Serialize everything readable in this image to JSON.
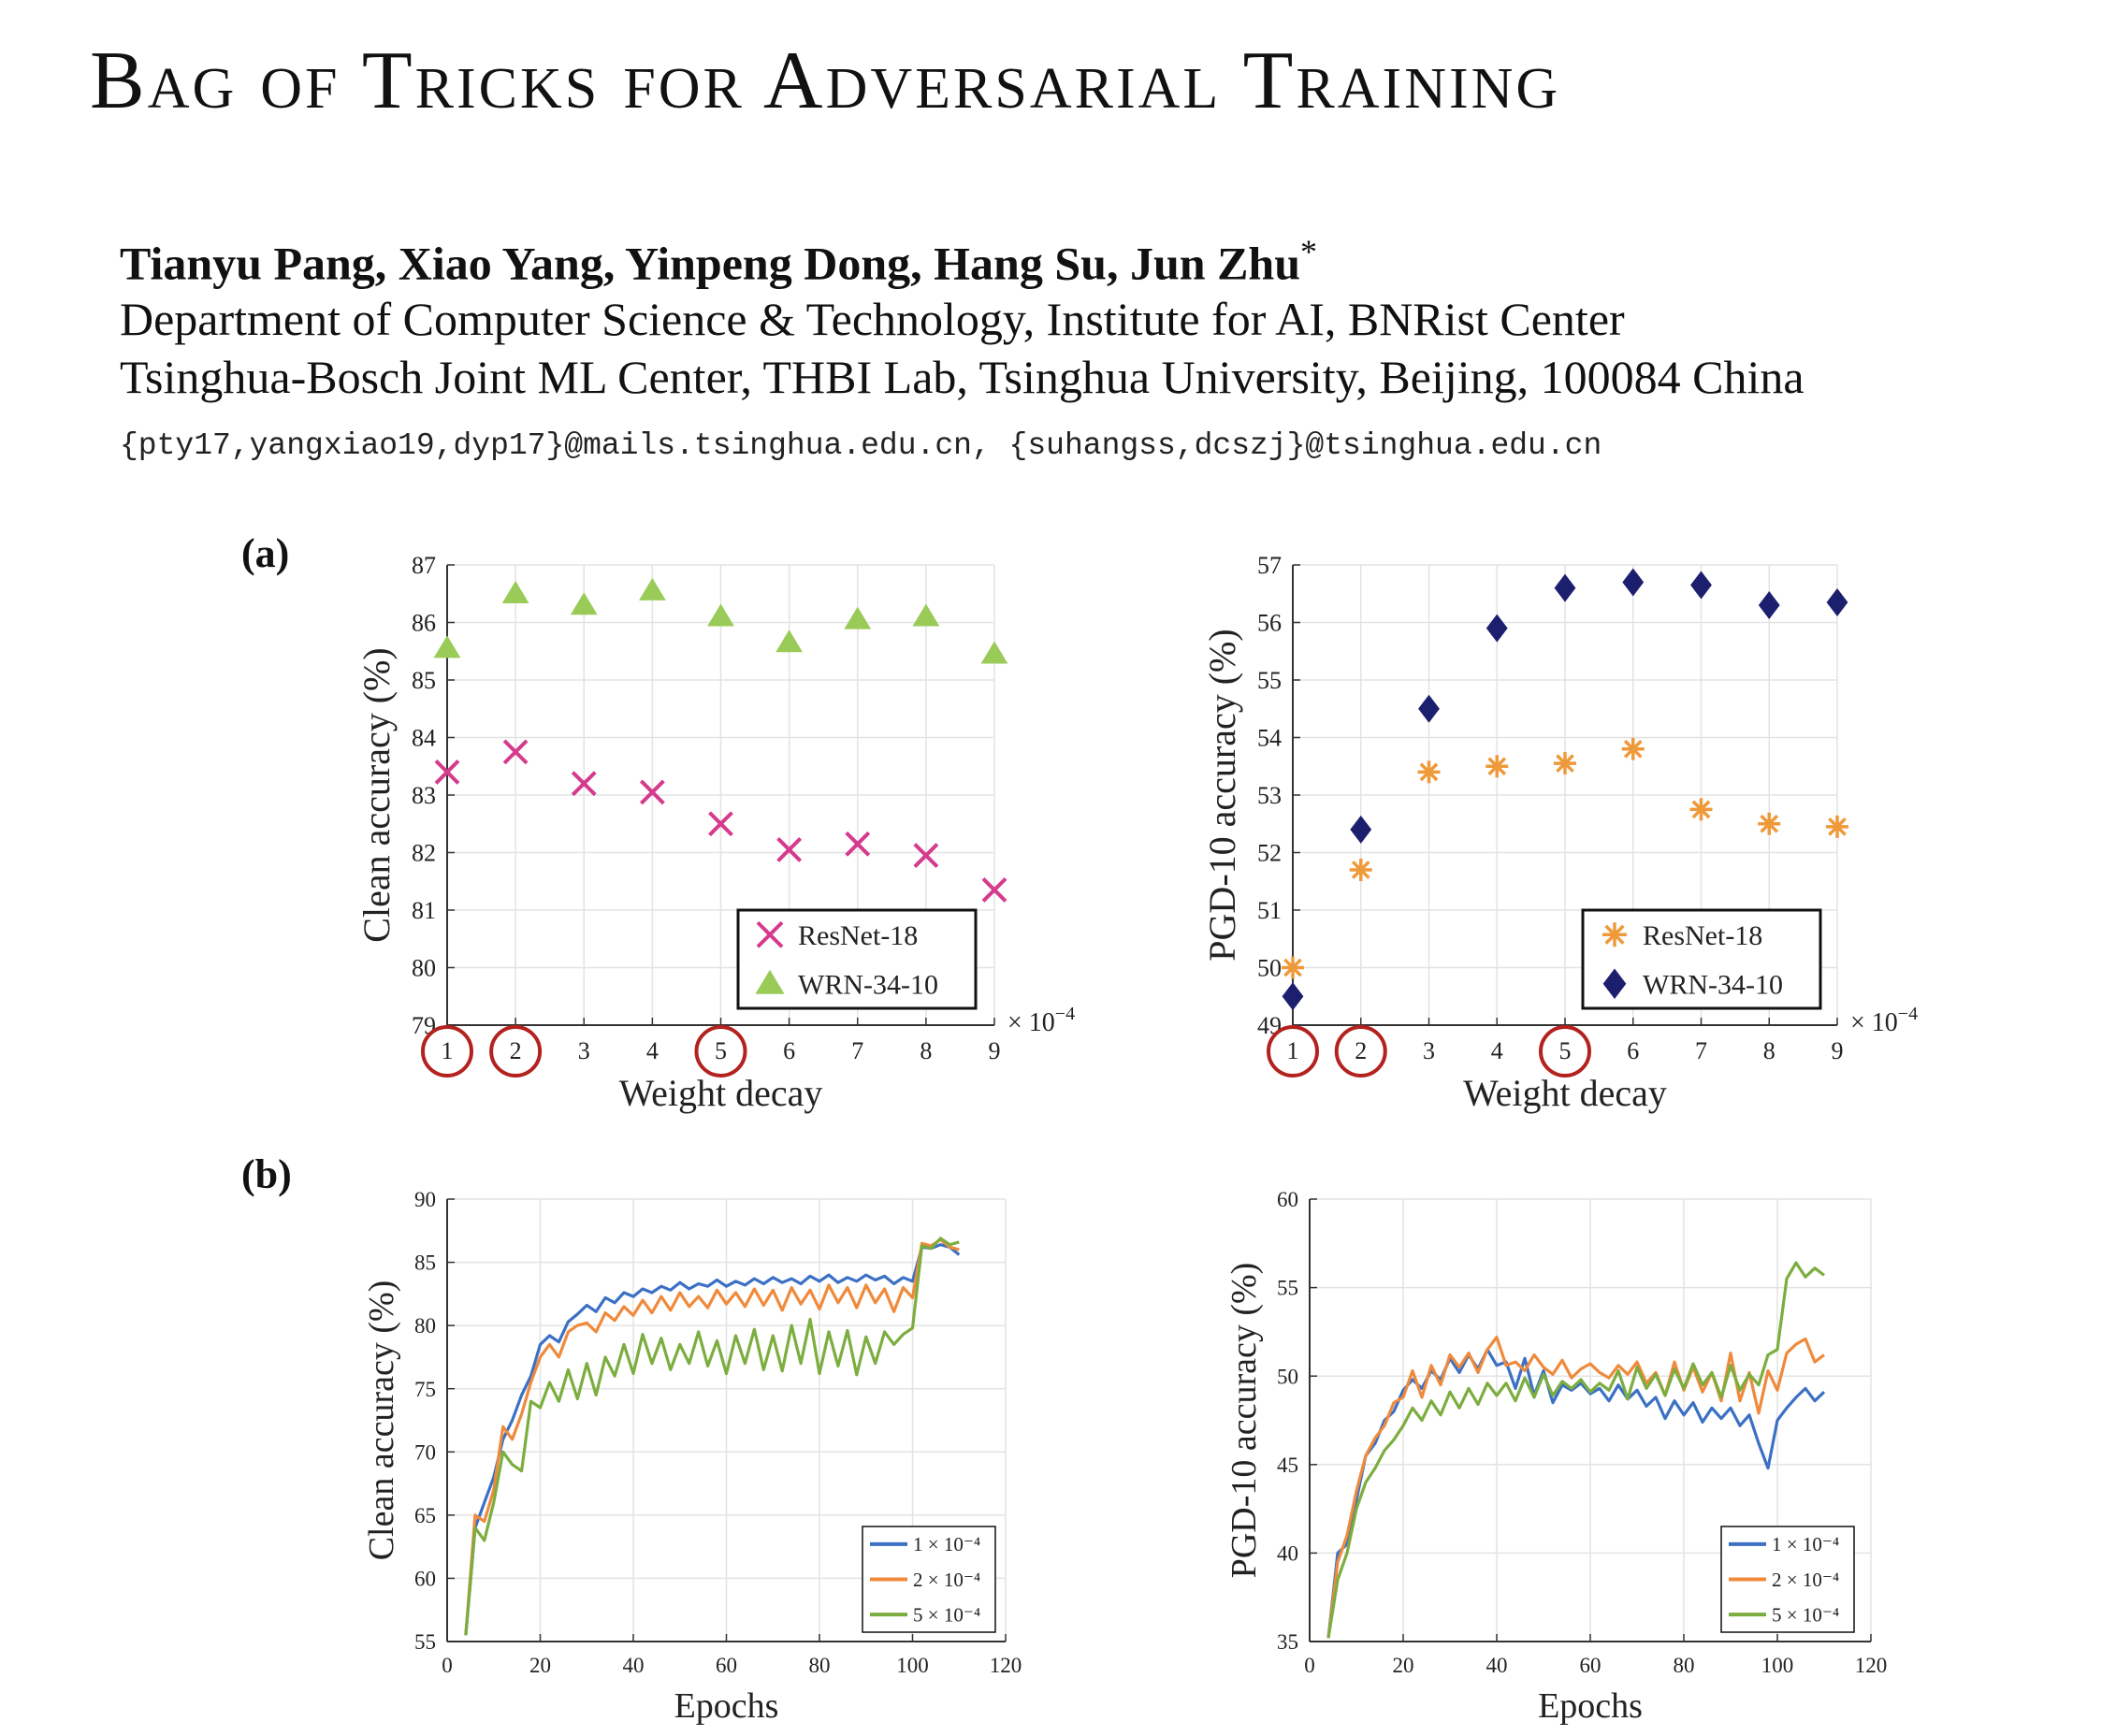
{
  "title": "Bag of Tricks for Adversarial Training",
  "authors": "Tianyu Pang, Xiao Yang, Yinpeng Dong, Hang Su, Jun Zhu",
  "author_mark": "*",
  "affiliation_1": "Department of Computer Science & Technology, Institute for AI, BNRist Center",
  "affiliation_2": "Tsinghua-Bosch Joint ML Center, THBI Lab, Tsinghua University, Beijing, 100084 China",
  "emails": "{pty17,yangxiao19,dyp17}@mails.tsinghua.edu.cn, {suhangss,dcszj}@tsinghua.edu.cn",
  "panel_labels": {
    "a": "(a)",
    "b": "(b)"
  },
  "chart_data": [
    {
      "id": "a-left",
      "type": "scatter",
      "xlabel": "Weight decay",
      "ylabel": "Clean accuracy (%)",
      "x_multiplier": "× 10",
      "x_multiplier_exp": "−4",
      "xlim": [
        1,
        9
      ],
      "ylim": [
        79,
        87
      ],
      "xticks": [
        1,
        2,
        3,
        4,
        5,
        6,
        7,
        8,
        9
      ],
      "yticks": [
        79,
        80,
        81,
        82,
        83,
        84,
        85,
        86,
        87
      ],
      "circled_xticks": [
        1,
        2,
        5
      ],
      "grid": true,
      "legend_position": "bottom-right",
      "series": [
        {
          "name": "ResNet-18",
          "marker": "x",
          "color": "#d63a8e",
          "x": [
            1,
            2,
            3,
            4,
            5,
            6,
            7,
            8,
            9
          ],
          "y": [
            83.4,
            83.75,
            83.2,
            83.05,
            82.5,
            82.05,
            82.15,
            81.95,
            81.35
          ]
        },
        {
          "name": "WRN-34-10",
          "marker": "triangle",
          "color": "#9acb58",
          "x": [
            1,
            2,
            3,
            4,
            5,
            6,
            7,
            8,
            9
          ],
          "y": [
            85.55,
            86.5,
            86.3,
            86.55,
            86.1,
            85.65,
            86.05,
            86.1,
            85.45
          ]
        }
      ]
    },
    {
      "id": "a-right",
      "type": "scatter",
      "xlabel": "Weight decay",
      "ylabel": "PGD-10 accuracy (%)",
      "x_multiplier": "× 10",
      "x_multiplier_exp": "−4",
      "xlim": [
        1,
        9
      ],
      "ylim": [
        49,
        57
      ],
      "xticks": [
        1,
        2,
        3,
        4,
        5,
        6,
        7,
        8,
        9
      ],
      "yticks": [
        49,
        50,
        51,
        52,
        53,
        54,
        55,
        56,
        57
      ],
      "circled_xticks": [
        1,
        2,
        5
      ],
      "grid": true,
      "legend_position": "bottom-right",
      "series": [
        {
          "name": "ResNet-18",
          "marker": "asterisk",
          "color": "#ef9a3a",
          "x": [
            1,
            2,
            3,
            4,
            5,
            6,
            7,
            8,
            9
          ],
          "y": [
            50.0,
            51.7,
            53.4,
            53.5,
            53.55,
            53.8,
            52.75,
            52.5,
            52.45
          ]
        },
        {
          "name": "WRN-34-10",
          "marker": "diamond",
          "color": "#1c1f6e",
          "x": [
            1,
            2,
            3,
            4,
            5,
            6,
            7,
            8,
            9
          ],
          "y": [
            49.5,
            52.4,
            54.5,
            55.9,
            56.6,
            56.7,
            56.65,
            56.3,
            56.35
          ]
        }
      ]
    },
    {
      "id": "b-left",
      "type": "line",
      "xlabel": "Epochs",
      "ylabel": "Clean accuracy (%)",
      "xlim": [
        0,
        120
      ],
      "ylim": [
        55,
        90
      ],
      "xticks": [
        0,
        20,
        40,
        60,
        80,
        100,
        120
      ],
      "yticks": [
        55,
        60,
        65,
        70,
        75,
        80,
        85,
        90
      ],
      "grid": true,
      "legend_position": "bottom-right",
      "series": [
        {
          "name": "1 × 10⁻⁴",
          "color": "#3b70c4",
          "x": [
            4,
            6,
            8,
            10,
            12,
            14,
            16,
            18,
            20,
            22,
            24,
            26,
            28,
            30,
            32,
            34,
            36,
            38,
            40,
            42,
            44,
            46,
            48,
            50,
            52,
            54,
            56,
            58,
            60,
            62,
            64,
            66,
            68,
            70,
            72,
            74,
            76,
            78,
            80,
            82,
            84,
            86,
            88,
            90,
            92,
            94,
            96,
            98,
            100,
            102,
            104,
            106,
            108,
            110
          ],
          "y": [
            55.5,
            64,
            66,
            68,
            71,
            72.5,
            74.5,
            76,
            78.5,
            79.2,
            78.7,
            80.3,
            80.9,
            81.6,
            81.1,
            82.2,
            81.8,
            82.6,
            82.3,
            82.9,
            82.6,
            83.1,
            82.8,
            83.4,
            82.9,
            83.3,
            83.1,
            83.6,
            83.1,
            83.5,
            83.2,
            83.7,
            83.3,
            83.8,
            83.4,
            83.7,
            83.3,
            83.9,
            83.5,
            84.0,
            83.4,
            83.8,
            83.5,
            84.0,
            83.6,
            83.9,
            83.3,
            83.8,
            83.5,
            86.2,
            86.1,
            86.4,
            86.2,
            85.6
          ]
        },
        {
          "name": "2 × 10⁻⁴",
          "color": "#ef8a3c",
          "x": [
            4,
            6,
            8,
            10,
            12,
            14,
            16,
            18,
            20,
            22,
            24,
            26,
            28,
            30,
            32,
            34,
            36,
            38,
            40,
            42,
            44,
            46,
            48,
            50,
            52,
            54,
            56,
            58,
            60,
            62,
            64,
            66,
            68,
            70,
            72,
            74,
            76,
            78,
            80,
            82,
            84,
            86,
            88,
            90,
            92,
            94,
            96,
            98,
            100,
            102,
            104,
            106,
            108,
            110
          ],
          "y": [
            55.5,
            65,
            64.5,
            67,
            72,
            71,
            73,
            75.5,
            77.5,
            78.5,
            77.5,
            79.5,
            80,
            80.2,
            79.5,
            81,
            80.4,
            81.5,
            80.8,
            82,
            81,
            82.3,
            81.2,
            82.6,
            81.5,
            82.3,
            81.4,
            82.8,
            81.7,
            82.6,
            81.5,
            82.9,
            81.6,
            82.8,
            81.2,
            83,
            81.7,
            82.8,
            81.3,
            83.2,
            81.8,
            83,
            81.4,
            83.2,
            81.8,
            82.9,
            81.1,
            83,
            82.2,
            86.5,
            86.3,
            86.8,
            86.2,
            86.0
          ]
        },
        {
          "name": "5 × 10⁻⁴",
          "color": "#7cad3f",
          "x": [
            4,
            6,
            8,
            10,
            12,
            14,
            16,
            18,
            20,
            22,
            24,
            26,
            28,
            30,
            32,
            34,
            36,
            38,
            40,
            42,
            44,
            46,
            48,
            50,
            52,
            54,
            56,
            58,
            60,
            62,
            64,
            66,
            68,
            70,
            72,
            74,
            76,
            78,
            80,
            82,
            84,
            86,
            88,
            90,
            92,
            94,
            96,
            98,
            100,
            102,
            104,
            106,
            108,
            110
          ],
          "y": [
            55.5,
            64,
            63,
            66,
            70,
            69,
            68.5,
            74,
            73.5,
            75.5,
            74,
            76.5,
            74.2,
            77,
            74.5,
            77.5,
            76,
            78.5,
            76.2,
            79.3,
            77,
            79,
            76.5,
            78.5,
            77,
            79.5,
            76.8,
            78.8,
            76.2,
            79.2,
            77,
            79.7,
            76.5,
            79.2,
            76.4,
            80,
            77,
            80.5,
            76.2,
            79.5,
            76.8,
            79.6,
            76.1,
            79.1,
            77,
            79.5,
            78.5,
            79.3,
            79.8,
            86.3,
            86.1,
            86.9,
            86.4,
            86.6
          ]
        }
      ]
    },
    {
      "id": "b-right",
      "type": "line",
      "xlabel": "Epochs",
      "ylabel": "PGD-10 accuracy (%)",
      "xlim": [
        0,
        120
      ],
      "ylim": [
        35,
        60
      ],
      "xticks": [
        0,
        20,
        40,
        60,
        80,
        100,
        120
      ],
      "yticks": [
        35,
        40,
        45,
        50,
        55,
        60
      ],
      "grid": true,
      "legend_position": "bottom-right",
      "series": [
        {
          "name": "1 × 10⁻⁴",
          "color": "#3b70c4",
          "x": [
            4,
            6,
            8,
            10,
            12,
            14,
            16,
            18,
            20,
            22,
            24,
            26,
            28,
            30,
            32,
            34,
            36,
            38,
            40,
            42,
            44,
            46,
            48,
            50,
            52,
            54,
            56,
            58,
            60,
            62,
            64,
            66,
            68,
            70,
            72,
            74,
            76,
            78,
            80,
            82,
            84,
            86,
            88,
            90,
            92,
            94,
            96,
            98,
            100,
            102,
            104,
            106,
            108,
            110
          ],
          "y": [
            35.2,
            40,
            40.5,
            43,
            45.5,
            46.2,
            47.5,
            48,
            49.2,
            49.8,
            49.3,
            50.3,
            49.8,
            51,
            50.2,
            51.2,
            50.4,
            51.5,
            50.6,
            50.8,
            49.3,
            51,
            48.9,
            50.3,
            48.5,
            49.5,
            49.2,
            49.6,
            49,
            49.3,
            48.6,
            49.5,
            48.7,
            49.2,
            48.3,
            48.8,
            47.6,
            48.6,
            47.8,
            48.5,
            47.4,
            48.2,
            47.6,
            48.2,
            47.2,
            47.8,
            46.2,
            44.8,
            47.5,
            48.2,
            48.8,
            49.3,
            48.6,
            49.1
          ]
        },
        {
          "name": "2 × 10⁻⁴",
          "color": "#ef8a3c",
          "x": [
            4,
            6,
            8,
            10,
            12,
            14,
            16,
            18,
            20,
            22,
            24,
            26,
            28,
            30,
            32,
            34,
            36,
            38,
            40,
            42,
            44,
            46,
            48,
            50,
            52,
            54,
            56,
            58,
            60,
            62,
            64,
            66,
            68,
            70,
            72,
            74,
            76,
            78,
            80,
            82,
            84,
            86,
            88,
            90,
            92,
            94,
            96,
            98,
            100,
            102,
            104,
            106,
            108,
            110
          ],
          "y": [
            35.2,
            39.5,
            41,
            43.5,
            45.5,
            46.5,
            47.2,
            48.5,
            48.8,
            50.3,
            48.8,
            50.6,
            49.5,
            51.2,
            50.5,
            51.3,
            50.2,
            51.5,
            52.2,
            50.6,
            50.8,
            50.3,
            51.2,
            50.5,
            50.1,
            50.9,
            49.9,
            50.4,
            50.7,
            50.2,
            49.9,
            50.6,
            50.1,
            50.8,
            49.6,
            50.2,
            48.9,
            50.8,
            49.2,
            50.5,
            49.1,
            50.2,
            48.6,
            51.3,
            48.6,
            50.2,
            47.9,
            50.3,
            49.2,
            51.3,
            51.8,
            52.1,
            50.8,
            51.2
          ]
        },
        {
          "name": "5 × 10⁻⁴",
          "color": "#7cad3f",
          "x": [
            4,
            6,
            8,
            10,
            12,
            14,
            16,
            18,
            20,
            22,
            24,
            26,
            28,
            30,
            32,
            34,
            36,
            38,
            40,
            42,
            44,
            46,
            48,
            50,
            52,
            54,
            56,
            58,
            60,
            62,
            64,
            66,
            68,
            70,
            72,
            74,
            76,
            78,
            80,
            82,
            84,
            86,
            88,
            90,
            92,
            94,
            96,
            98,
            100,
            102,
            104,
            106,
            108,
            110
          ],
          "y": [
            35.2,
            38.5,
            40,
            42.5,
            44,
            44.8,
            45.8,
            46.4,
            47.2,
            48.2,
            47.5,
            48.6,
            47.8,
            49.1,
            48.2,
            49.3,
            48.4,
            49.6,
            48.9,
            49.6,
            48.6,
            49.9,
            48.8,
            50.1,
            48.9,
            49.7,
            49.3,
            49.8,
            49.1,
            49.6,
            49.2,
            50.3,
            48.7,
            50.5,
            49.3,
            50.1,
            48.9,
            50.4,
            49.3,
            50.7,
            49.5,
            50.2,
            48.8,
            50.6,
            49.2,
            50.1,
            49.5,
            51.2,
            51.5,
            55.5,
            56.4,
            55.6,
            56.1,
            55.7
          ]
        }
      ]
    }
  ]
}
